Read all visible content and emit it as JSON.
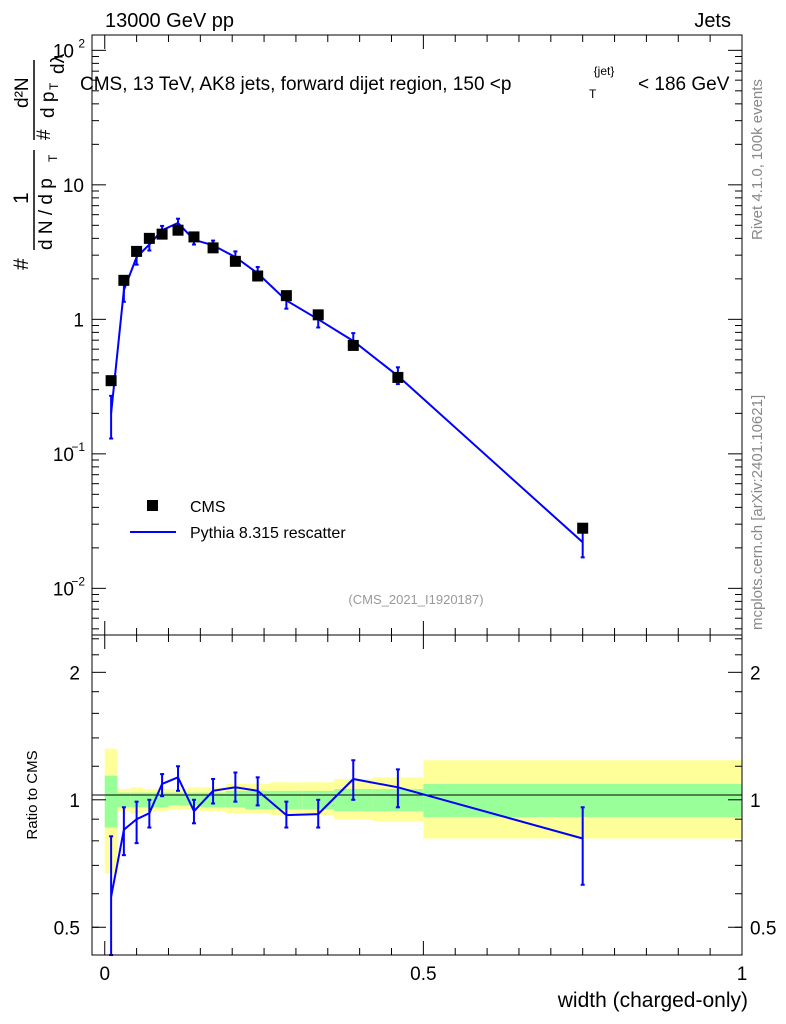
{
  "header": {
    "energy_label": "13000 GeV pp",
    "category_label": "Jets"
  },
  "side_labels": {
    "rivet_label": "Rivet 4.1.0,  100k events",
    "source_label": "mcplots.cern.ch [arXiv:2401.10621]"
  },
  "colors": {
    "mc_line": "#0000ff",
    "band_inner": "#99ff99",
    "band_outer": "#ffff99",
    "data_marker": "#000000"
  },
  "chart_data": [
    {
      "type": "line",
      "panel": "main",
      "title": "CMS, 13 TeV, AK8 jets, forward dijet region, 150 <p_T^{jet}< 186 GeV",
      "title_parts": {
        "lead": "CMS, 13 TeV, AK8 jets, forward dijet region, 150 <p",
        "sub": "T",
        "sup": "{jet}",
        "tail": "< 186 GeV"
      },
      "ylabel": "1/dN/dp_T · d²N/dp_T dλ",
      "ylabel_parts": {
        "num_prefix": "#",
        "one": "1",
        "den": "d N / d p",
        "den_sub": "T",
        "frac2_num": "d²N",
        "frac2_den_prefix": "#",
        "frac2_den": "d p",
        "frac2_den_sub": "T",
        "lambda": "dλ"
      },
      "yscale": "log",
      "ylim": [
        0.0045,
        130
      ],
      "xlim": [
        -0.02,
        1.0
      ],
      "y_ticks": [
        {
          "value": 100,
          "base": "10",
          "exp": "2"
        },
        {
          "value": 10,
          "base": "10",
          "exp": ""
        },
        {
          "value": 1,
          "base": "1",
          "exp": ""
        },
        {
          "value": 0.1,
          "base": "10",
          "exp": "−1"
        },
        {
          "value": 0.01,
          "base": "10",
          "exp": "−2"
        }
      ],
      "watermark": "(CMS_2021_I1920187)",
      "legend": {
        "position": "lower-left",
        "entries": [
          "CMS",
          "Pythia 8.315 rescatter"
        ]
      },
      "series": [
        {
          "name": "CMS",
          "style": "markers",
          "x": [
            0.01,
            0.03,
            0.05,
            0.07,
            0.09,
            0.115,
            0.14,
            0.17,
            0.205,
            0.24,
            0.285,
            0.335,
            0.39,
            0.46,
            0.75
          ],
          "y": [
            0.35,
            1.95,
            3.2,
            4.0,
            4.3,
            4.6,
            4.1,
            3.4,
            2.7,
            2.1,
            1.5,
            1.08,
            0.64,
            0.37,
            0.028
          ]
        },
        {
          "name": "Pythia 8.315 rescatter",
          "style": "line",
          "x": [
            0.01,
            0.03,
            0.05,
            0.07,
            0.09,
            0.115,
            0.14,
            0.17,
            0.205,
            0.24,
            0.285,
            0.335,
            0.39,
            0.46,
            0.75
          ],
          "y": [
            0.2,
            1.65,
            2.9,
            3.6,
            4.6,
            5.2,
            3.9,
            3.55,
            2.9,
            2.2,
            1.38,
            1.0,
            0.69,
            0.38,
            0.022
          ],
          "err_low": [
            0.13,
            1.35,
            2.55,
            3.25,
            4.25,
            4.8,
            3.6,
            3.25,
            2.6,
            1.95,
            1.2,
            0.87,
            0.6,
            0.33,
            0.017
          ],
          "err_high": [
            0.27,
            1.95,
            3.25,
            3.95,
            4.95,
            5.6,
            4.2,
            3.85,
            3.2,
            2.45,
            1.56,
            1.13,
            0.79,
            0.44,
            0.027
          ]
        }
      ]
    },
    {
      "type": "line",
      "panel": "ratio",
      "ylabel": "Ratio to CMS",
      "xlabel": "width (charged-only)",
      "yscale": "log",
      "ylim": [
        0.43,
        2.45
      ],
      "xlim": [
        -0.02,
        1.0
      ],
      "y_ticks": [
        {
          "value": 2,
          "label": "2"
        },
        {
          "value": 1,
          "label": "1"
        },
        {
          "value": 0.5,
          "label": "0.5"
        }
      ],
      "x_ticks": [
        {
          "value": 0,
          "label": "0"
        },
        {
          "value": 0.5,
          "label": "0.5"
        },
        {
          "value": 1,
          "label": "1"
        }
      ],
      "bands": {
        "bin_edges": [
          0.0,
          0.02,
          0.04,
          0.06,
          0.08,
          0.1,
          0.13,
          0.15,
          0.19,
          0.22,
          0.26,
          0.31,
          0.36,
          0.42,
          0.5,
          1.0
        ],
        "inner_low": [
          0.86,
          0.96,
          0.96,
          0.96,
          0.96,
          0.97,
          0.97,
          0.96,
          0.96,
          0.95,
          0.95,
          0.95,
          0.94,
          0.94,
          0.91
        ],
        "inner_high": [
          1.14,
          1.04,
          1.04,
          1.04,
          1.04,
          1.04,
          1.04,
          1.04,
          1.05,
          1.05,
          1.05,
          1.05,
          1.06,
          1.06,
          1.09
        ],
        "outer_low": [
          0.67,
          0.94,
          0.93,
          0.94,
          0.94,
          0.95,
          0.95,
          0.94,
          0.93,
          0.93,
          0.92,
          0.92,
          0.9,
          0.89,
          0.81
        ],
        "outer_high": [
          1.32,
          1.06,
          1.07,
          1.06,
          1.06,
          1.06,
          1.07,
          1.07,
          1.09,
          1.09,
          1.1,
          1.1,
          1.12,
          1.13,
          1.24
        ]
      },
      "series": [
        {
          "name": "Pythia 8.315 rescatter / CMS",
          "x": [
            0.01,
            0.03,
            0.05,
            0.07,
            0.09,
            0.115,
            0.14,
            0.17,
            0.205,
            0.24,
            0.285,
            0.335,
            0.39,
            0.46,
            0.75
          ],
          "y": [
            0.59,
            0.85,
            0.9,
            0.93,
            1.09,
            1.13,
            0.94,
            1.05,
            1.07,
            1.05,
            0.92,
            0.925,
            1.12,
            1.07,
            0.81
          ],
          "err_low": [
            0.43,
            0.74,
            0.79,
            0.86,
            1.02,
            1.05,
            0.88,
            0.98,
            0.99,
            0.97,
            0.86,
            0.86,
            1.0,
            0.96,
            0.63
          ],
          "err_high": [
            0.82,
            0.96,
            0.99,
            1.0,
            1.15,
            1.2,
            1.0,
            1.12,
            1.16,
            1.13,
            0.99,
            1.0,
            1.24,
            1.18,
            0.96
          ]
        }
      ]
    }
  ]
}
